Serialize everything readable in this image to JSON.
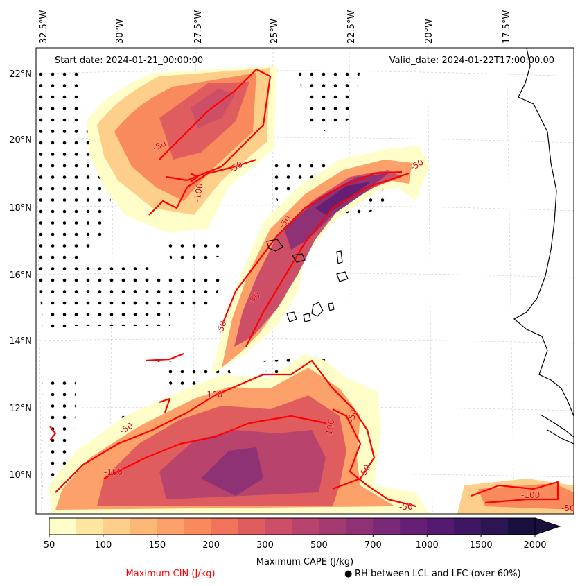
{
  "map": {
    "start_label": "Start date: 2024-01-21_00:00:00",
    "valid_label": "Valid_date: 2024-01-22T17:00:00.00",
    "lon_labels": [
      "32.5°W",
      "30°W",
      "27.5°W",
      "25°W",
      "22.5°W",
      "20°W",
      "17.5°W"
    ],
    "lat_labels": [
      "22°N",
      "20°N",
      "18°N",
      "16°N",
      "14°N",
      "12°N",
      "10°N"
    ],
    "contour_labels": [
      "-50",
      "-50",
      "-50",
      "-50",
      "-50",
      "-100",
      "-100",
      "-100",
      "-50",
      "-50",
      "-100",
      "-50",
      "-100",
      "-50",
      "-50",
      "-50"
    ],
    "coastline_color": "#000000",
    "cin_color": "#ff0000",
    "stipple_color": "#000000"
  },
  "colorbar": {
    "label": "Maximum CAPE (J/kg)",
    "tick_labels": [
      "50",
      "100",
      "150",
      "200",
      "300",
      "500",
      "700",
      "1000",
      "1500",
      "2000"
    ],
    "colors": [
      "#fffdc8",
      "#fee5a0",
      "#fecf8a",
      "#fdb878",
      "#fca16a",
      "#f98a5e",
      "#f0735a",
      "#e05d5f",
      "#cc4f67",
      "#b8436d",
      "#a33a72",
      "#8e3175",
      "#7a2877",
      "#671f76",
      "#531a70",
      "#3f1664",
      "#2b1553",
      "#1a103e"
    ],
    "extend": "max"
  },
  "legend": {
    "cin_label": "Maximum CIN (J/kg)",
    "rh_label": "RH between LCL and LFC (over 60%)",
    "rh_marker": "●"
  }
}
